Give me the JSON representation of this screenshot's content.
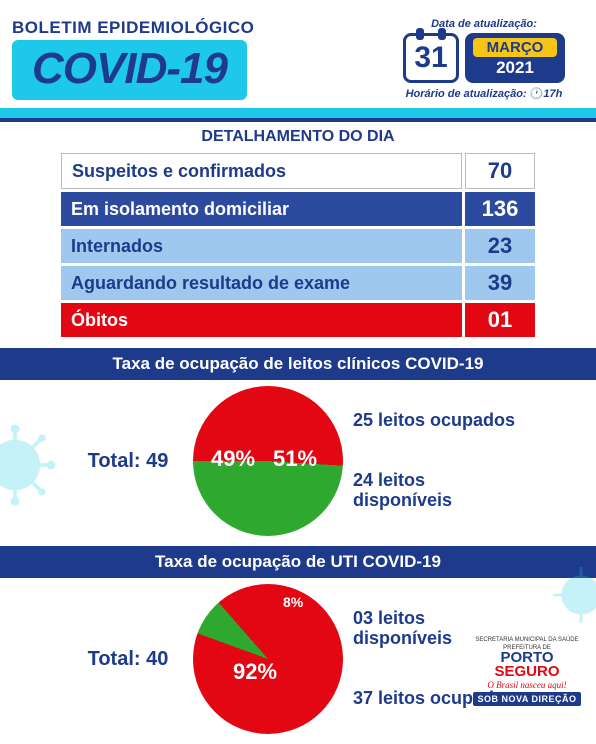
{
  "header": {
    "title_line1": "BOLETIM EPIDEMIOLÓGICO",
    "title_covid": "COVID-19",
    "update_date_label": "Data de atualização:",
    "day": "31",
    "month": "MARÇO",
    "year": "2021",
    "update_time_label": "Horário de atualização:",
    "time": "17h"
  },
  "details": {
    "header": "DETALHAMENTO DO DIA",
    "rows": [
      {
        "label": "Suspeitos e confirmados",
        "value": "70",
        "bg": "#ffffff",
        "fg": "#1e3a8a"
      },
      {
        "label": "Em isolamento domiciliar",
        "value": "136",
        "bg": "#2c4a9e",
        "fg": "#ffffff"
      },
      {
        "label": "Internados",
        "value": "23",
        "bg": "#9ec8ee",
        "fg": "#1e3a8a"
      },
      {
        "label": "Aguardando resultado de exame",
        "value": "39",
        "bg": "#9ec8ee",
        "fg": "#1e3a8a"
      },
      {
        "label": "Óbitos",
        "value": "01",
        "bg": "#e30613",
        "fg": "#ffffff"
      }
    ]
  },
  "chart1": {
    "title_prefix": "Taxa de ocupação de ",
    "title_bold": "leitos clínicos COVID-19",
    "total_label": "Total: ",
    "total_value": "49",
    "type": "pie",
    "slices": [
      {
        "label": "51%",
        "value": 51,
        "color": "#e30613",
        "callout": "25 leitos ocupados"
      },
      {
        "label": "49%",
        "value": 49,
        "color": "#2fa82f",
        "callout": "24 leitos disponíveis"
      }
    ],
    "pie_start_angle": -90
  },
  "chart2": {
    "title_prefix": "Taxa de ocupação de ",
    "title_bold": "UTI COVID-19",
    "total_label": "Total: ",
    "total_value": "40",
    "type": "pie",
    "slices": [
      {
        "label": "8%",
        "value": 8,
        "color": "#2fa82f",
        "callout": "03 leitos disponíveis"
      },
      {
        "label": "92%",
        "value": 92,
        "color": "#e30613",
        "callout": "37 leitos ocupados"
      }
    ],
    "pie_start_angle": -70
  },
  "footer": {
    "secretaria": "SECRETARIA MUNICIPAL DA SAÚDE",
    "prefeitura": "PREFEITURA DE",
    "logo1": "PORTO",
    "logo2": "SEGURO",
    "tagline": "O Brasil nasceu aqui!",
    "badge": "SOB NOVA DIREÇÃO"
  },
  "colors": {
    "navy": "#1e3a8a",
    "cyan": "#1ec8e8",
    "yellow": "#f5c518",
    "red": "#e30613",
    "green": "#2fa82f"
  }
}
